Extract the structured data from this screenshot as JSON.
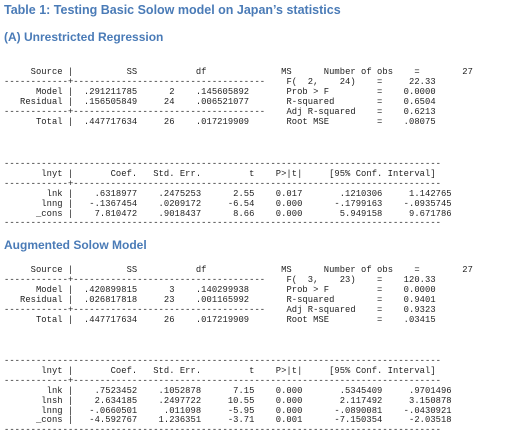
{
  "title": "Table 1: Testing Basic Solow model on Japan’s statistics",
  "panels": [
    {
      "heading": "(A) Unrestricted Regression",
      "anova": {
        "headers": [
          "Source",
          "SS",
          "df",
          "MS"
        ],
        "rows": [
          {
            "source": "Model",
            "ss": ".291211785",
            "df": "2",
            "ms": ".145605892"
          },
          {
            "source": "Residual",
            "ss": ".156505849",
            "df": "24",
            "ms": ".006521077"
          }
        ],
        "total": {
          "source": "Total",
          "ss": ".447717634",
          "df": "26",
          "ms": ".017219909"
        }
      },
      "stats": [
        {
          "label": "Number of obs",
          "value": "27"
        },
        {
          "label": "F(  2,    24)",
          "value": "22.33"
        },
        {
          "label": "Prob > F",
          "value": "0.0000"
        },
        {
          "label": "R-squared",
          "value": "0.6504"
        },
        {
          "label": "Adj R-squared",
          "value": "0.6213"
        },
        {
          "label": "Root MSE",
          "value": ".08075"
        }
      ],
      "coef": {
        "headers": [
          "lnyt",
          "Coef.",
          "Std. Err.",
          "t",
          "P>|t|",
          "[95% Conf. Interval]"
        ],
        "rows": [
          {
            "var": "lnk",
            "coef": ".6318977",
            "se": ".2475253",
            "t": "2.55",
            "p": "0.017",
            "lo": ".1210306",
            "hi": "1.142765"
          },
          {
            "var": "lnng",
            "coef": "-.1367454",
            "se": ".0209172",
            "t": "-6.54",
            "p": "0.000",
            "lo": "-.1799163",
            "hi": "-.0935745"
          },
          {
            "var": "_cons",
            "coef": "7.810472",
            "se": ".9018437",
            "t": "8.66",
            "p": "0.000",
            "lo": "5.949158",
            "hi": "9.671786"
          }
        ]
      }
    },
    {
      "heading": "Augmented Solow Model",
      "anova": {
        "headers": [
          "Source",
          "SS",
          "df",
          "MS"
        ],
        "rows": [
          {
            "source": "Model",
            "ss": ".420899815",
            "df": "3",
            "ms": ".140299938"
          },
          {
            "source": "Residual",
            "ss": ".026817818",
            "df": "23",
            "ms": ".001165992"
          }
        ],
        "total": {
          "source": "Total",
          "ss": ".447717634",
          "df": "26",
          "ms": ".017219909"
        }
      },
      "stats": [
        {
          "label": "Number of obs",
          "value": "27"
        },
        {
          "label": "F(  3,    23)",
          "value": "120.33"
        },
        {
          "label": "Prob > F",
          "value": "0.0000"
        },
        {
          "label": "R-squared",
          "value": "0.9401"
        },
        {
          "label": "Adj R-squared",
          "value": "0.9323"
        },
        {
          "label": "Root MSE",
          "value": ".03415"
        }
      ],
      "coef": {
        "headers": [
          "lnyt",
          "Coef.",
          "Std. Err.",
          "t",
          "P>|t|",
          "[95% Conf. Interval]"
        ],
        "rows": [
          {
            "var": "lnk",
            "coef": ".7523452",
            "se": ".1052878",
            "t": "7.15",
            "p": "0.000",
            "lo": ".5345409",
            "hi": ".9701496"
          },
          {
            "var": "lnsh",
            "coef": "2.634185",
            "se": ".2497722",
            "t": "10.55",
            "p": "0.000",
            "lo": "2.117492",
            "hi": "3.150878"
          },
          {
            "var": "lnng",
            "coef": "-.0660501",
            "se": ".011098",
            "t": "-5.95",
            "p": "0.000",
            "lo": "-.0890081",
            "hi": "-.0430921"
          },
          {
            "var": "_cons",
            "coef": "-4.592767",
            "se": "1.236351",
            "t": "-3.71",
            "p": "0.001",
            "lo": "-7.150354",
            "hi": "-2.03518"
          }
        ]
      }
    }
  ]
}
